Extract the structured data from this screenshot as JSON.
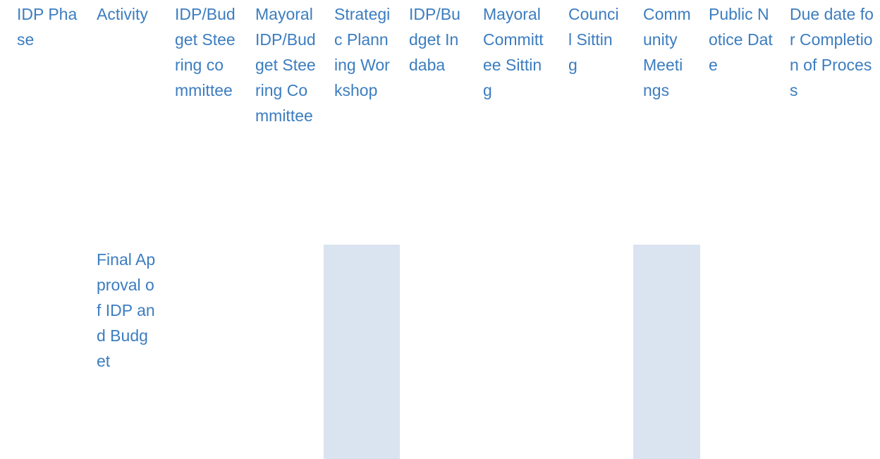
{
  "table": {
    "headers": [
      "IDP Phase",
      "Activity",
      "IDP/Budget Steering committee",
      "Mayoral IDP/Budget Steering Committee",
      "Strategic Planning Workshop",
      "IDP/Budget Indaba",
      "Mayoral Committee Sitting",
      "Council Sitting",
      "Community Meetings",
      "Public Notice Date",
      "Due date for Completion of Process"
    ],
    "rows": [
      {
        "activity": "Final Approval of IDP and Budget"
      }
    ]
  }
}
